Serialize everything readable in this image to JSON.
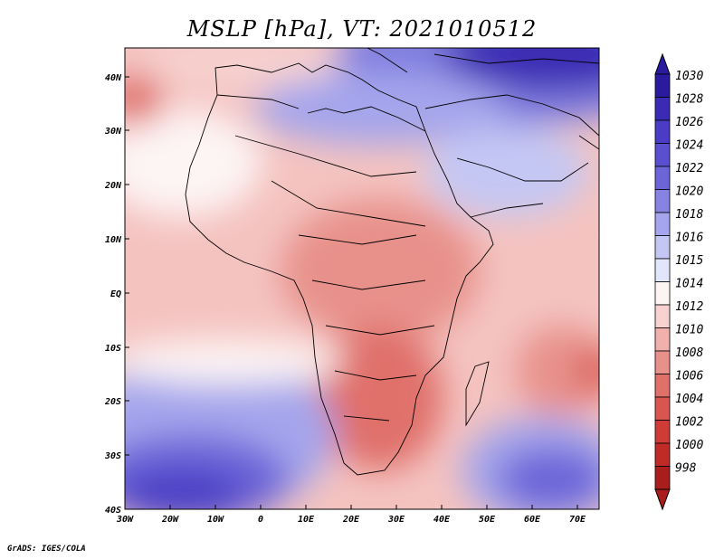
{
  "title": "MSLP [hPa], VT: 2021010512",
  "credit": "GrADS: IGES/COLA",
  "map": {
    "lon_labels": [
      "30W",
      "20W",
      "10W",
      "0",
      "10E",
      "20E",
      "30E",
      "40E",
      "50E",
      "60E",
      "70E"
    ],
    "lat_labels": [
      "40N",
      "30N",
      "20N",
      "10N",
      "EQ",
      "10S",
      "20S",
      "30S",
      "40S"
    ],
    "lon_range": [
      -30,
      75
    ],
    "lat_range": [
      -40,
      45
    ]
  },
  "colorbar": {
    "levels": [
      "1030",
      "1028",
      "1026",
      "1024",
      "1022",
      "1020",
      "1018",
      "1016",
      "1015",
      "1014",
      "1012",
      "1010",
      "1008",
      "1006",
      "1004",
      "1002",
      "1000",
      "998"
    ],
    "colors": [
      "#2a1a9e",
      "#3a2ab4",
      "#4a3cc4",
      "#5a50cf",
      "#6c65d8",
      "#8683e2",
      "#a4a5ec",
      "#c4c7f4",
      "#e2e6fb",
      "#fdf4f4",
      "#f7d2d0",
      "#f0b0ac",
      "#e8918b",
      "#e0706a",
      "#d8564f",
      "#cf3c37",
      "#c02a27",
      "#a91d1d"
    ]
  },
  "colors": {
    "land_border": "#000000",
    "background": "#ffffff"
  }
}
